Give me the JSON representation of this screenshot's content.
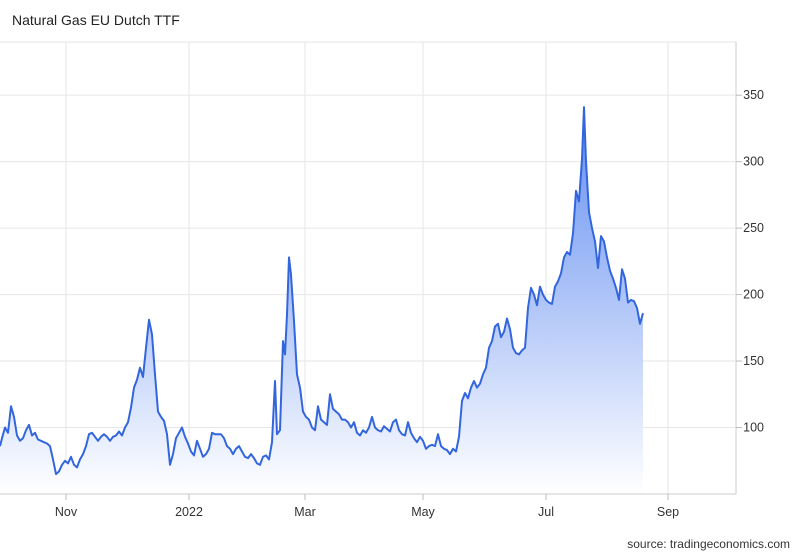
{
  "source_label": "source: tradingeconomics.com",
  "colors": {
    "line": "#3366dd",
    "fill_top": "#5b88f0",
    "fill_bottom": "#ffffff",
    "grid": "#e6e6e6"
  },
  "chart_data": {
    "type": "area",
    "title": "Natural Gas EU Dutch TTF",
    "xlabel": "",
    "ylabel": "",
    "ylim": [
      50,
      390
    ],
    "y_ticks": [
      100,
      150,
      200,
      250,
      300,
      350
    ],
    "x_ticks": [
      "Nov",
      "2022",
      "Mar",
      "May",
      "Jul",
      "Sep"
    ],
    "grid": true,
    "legend": "none",
    "series": [
      {
        "values": [
          [
            0,
            86
          ],
          [
            2,
            92
          ],
          [
            5,
            100
          ],
          [
            8,
            96
          ],
          [
            11,
            116
          ],
          [
            14,
            108
          ],
          [
            17,
            94
          ],
          [
            20,
            90
          ],
          [
            23,
            92
          ],
          [
            26,
            98
          ],
          [
            29,
            102
          ],
          [
            32,
            94
          ],
          [
            35,
            96
          ],
          [
            38,
            91
          ],
          [
            41,
            90
          ],
          [
            44,
            89
          ],
          [
            47,
            88
          ],
          [
            50,
            86
          ],
          [
            53,
            76
          ],
          [
            56,
            65
          ],
          [
            59,
            67
          ],
          [
            62,
            72
          ],
          [
            65,
            75
          ],
          [
            68,
            73
          ],
          [
            71,
            78
          ],
          [
            74,
            72
          ],
          [
            77,
            70
          ],
          [
            80,
            76
          ],
          [
            83,
            80
          ],
          [
            86,
            86
          ],
          [
            89,
            95
          ],
          [
            92,
            96
          ],
          [
            95,
            93
          ],
          [
            98,
            90
          ],
          [
            101,
            93
          ],
          [
            104,
            95
          ],
          [
            107,
            93
          ],
          [
            110,
            90
          ],
          [
            113,
            93
          ],
          [
            116,
            94
          ],
          [
            119,
            97
          ],
          [
            122,
            94
          ],
          [
            125,
            100
          ],
          [
            128,
            104
          ],
          [
            131,
            115
          ],
          [
            134,
            130
          ],
          [
            137,
            136
          ],
          [
            140,
            145
          ],
          [
            143,
            138
          ],
          [
            146,
            160
          ],
          [
            149,
            181
          ],
          [
            152,
            170
          ],
          [
            155,
            140
          ],
          [
            158,
            112
          ],
          [
            161,
            108
          ],
          [
            164,
            105
          ],
          [
            167,
            95
          ],
          [
            170,
            72
          ],
          [
            173,
            80
          ],
          [
            176,
            92
          ],
          [
            179,
            96
          ],
          [
            182,
            100
          ],
          [
            185,
            93
          ],
          [
            188,
            88
          ],
          [
            191,
            82
          ],
          [
            194,
            79
          ],
          [
            197,
            90
          ],
          [
            200,
            84
          ],
          [
            203,
            78
          ],
          [
            206,
            80
          ],
          [
            209,
            84
          ],
          [
            212,
            96
          ],
          [
            215,
            95
          ],
          [
            218,
            95
          ],
          [
            221,
            95
          ],
          [
            224,
            92
          ],
          [
            227,
            86
          ],
          [
            230,
            84
          ],
          [
            233,
            80
          ],
          [
            236,
            84
          ],
          [
            239,
            86
          ],
          [
            242,
            82
          ],
          [
            245,
            78
          ],
          [
            248,
            77
          ],
          [
            251,
            80
          ],
          [
            254,
            77
          ],
          [
            257,
            73
          ],
          [
            260,
            72
          ],
          [
            263,
            78
          ],
          [
            266,
            79
          ],
          [
            269,
            76
          ],
          [
            272,
            89
          ],
          [
            275,
            135
          ],
          [
            277,
            95
          ],
          [
            280,
            98
          ],
          [
            283,
            165
          ],
          [
            285,
            155
          ],
          [
            287,
            185
          ],
          [
            289,
            228
          ],
          [
            291,
            215
          ],
          [
            294,
            180
          ],
          [
            297,
            140
          ],
          [
            300,
            130
          ],
          [
            303,
            112
          ],
          [
            306,
            108
          ],
          [
            309,
            106
          ],
          [
            312,
            100
          ],
          [
            315,
            98
          ],
          [
            318,
            116
          ],
          [
            321,
            106
          ],
          [
            324,
            104
          ],
          [
            327,
            102
          ],
          [
            330,
            125
          ],
          [
            333,
            114
          ],
          [
            336,
            112
          ],
          [
            339,
            110
          ],
          [
            342,
            106
          ],
          [
            345,
            106
          ],
          [
            348,
            104
          ],
          [
            351,
            100
          ],
          [
            354,
            104
          ],
          [
            357,
            96
          ],
          [
            360,
            94
          ],
          [
            363,
            98
          ],
          [
            366,
            96
          ],
          [
            369,
            100
          ],
          [
            372,
            108
          ],
          [
            375,
            100
          ],
          [
            378,
            98
          ],
          [
            381,
            97
          ],
          [
            384,
            101
          ],
          [
            387,
            99
          ],
          [
            390,
            97
          ],
          [
            393,
            104
          ],
          [
            396,
            106
          ],
          [
            399,
            98
          ],
          [
            402,
            95
          ],
          [
            405,
            94
          ],
          [
            408,
            104
          ],
          [
            411,
            96
          ],
          [
            414,
            92
          ],
          [
            417,
            89
          ],
          [
            420,
            93
          ],
          [
            423,
            90
          ],
          [
            426,
            84
          ],
          [
            429,
            86
          ],
          [
            432,
            87
          ],
          [
            435,
            86
          ],
          [
            438,
            95
          ],
          [
            441,
            86
          ],
          [
            444,
            84
          ],
          [
            447,
            83
          ],
          [
            450,
            80
          ],
          [
            453,
            84
          ],
          [
            456,
            82
          ],
          [
            459,
            93
          ],
          [
            462,
            120
          ],
          [
            465,
            126
          ],
          [
            468,
            122
          ],
          [
            471,
            130
          ],
          [
            474,
            135
          ],
          [
            477,
            130
          ],
          [
            480,
            133
          ],
          [
            483,
            140
          ],
          [
            486,
            145
          ],
          [
            489,
            160
          ],
          [
            492,
            165
          ],
          [
            495,
            176
          ],
          [
            498,
            178
          ],
          [
            501,
            168
          ],
          [
            504,
            172
          ],
          [
            507,
            182
          ],
          [
            510,
            174
          ],
          [
            513,
            160
          ],
          [
            516,
            156
          ],
          [
            519,
            155
          ],
          [
            522,
            158
          ],
          [
            525,
            160
          ],
          [
            528,
            190
          ],
          [
            531,
            205
          ],
          [
            534,
            200
          ],
          [
            537,
            192
          ],
          [
            540,
            206
          ],
          [
            543,
            200
          ],
          [
            546,
            196
          ],
          [
            549,
            194
          ],
          [
            552,
            193
          ],
          [
            555,
            206
          ],
          [
            558,
            210
          ],
          [
            561,
            216
          ],
          [
            564,
            228
          ],
          [
            567,
            232
          ],
          [
            570,
            230
          ],
          [
            573,
            246
          ],
          [
            576,
            278
          ],
          [
            579,
            270
          ],
          [
            582,
            302
          ],
          [
            584,
            341
          ],
          [
            586,
            300
          ],
          [
            589,
            262
          ],
          [
            592,
            250
          ],
          [
            595,
            240
          ],
          [
            598,
            220
          ],
          [
            601,
            244
          ],
          [
            604,
            240
          ],
          [
            607,
            228
          ],
          [
            610,
            218
          ],
          [
            613,
            212
          ],
          [
            616,
            205
          ],
          [
            619,
            196
          ],
          [
            622,
            219
          ],
          [
            625,
            212
          ],
          [
            628,
            194
          ],
          [
            631,
            196
          ],
          [
            634,
            195
          ],
          [
            637,
            190
          ],
          [
            640,
            178
          ],
          [
            643,
            186
          ]
        ]
      }
    ]
  }
}
